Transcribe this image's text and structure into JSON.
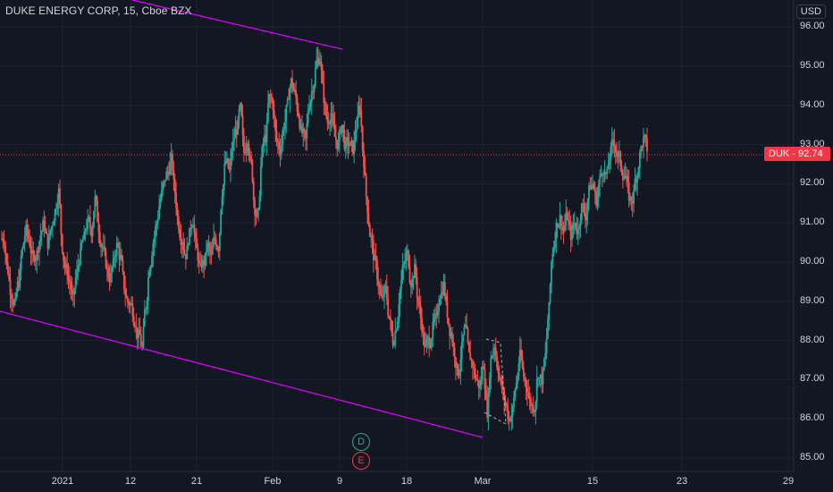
{
  "header": {
    "title": "DUKE ENERGY CORP, 15, Cboe BZX",
    "currency": "USD"
  },
  "price_tag": {
    "label": "DUK",
    "value": "92.74"
  },
  "markers": {
    "dividend": "D",
    "earnings": "E"
  },
  "colors": {
    "background": "#131722",
    "up": "#26a69a",
    "down": "#ef5350",
    "trendline": "#d500f9",
    "price_line": "#f23645"
  },
  "chart_data": {
    "type": "line",
    "title": "DUKE ENERGY CORP, 15, Cboe BZX",
    "ylim": [
      84.6,
      96.5
    ],
    "y_ticks": [
      "96.00",
      "95.00",
      "94.00",
      "93.00",
      "92.00",
      "91.00",
      "90.00",
      "89.00",
      "88.00",
      "87.00",
      "86.00",
      "85.00"
    ],
    "x_ticks": [
      "2021",
      "12",
      "21",
      "Feb",
      "9",
      "18",
      "Mar",
      "15",
      "23",
      "29"
    ],
    "last_price": 92.74,
    "series": [
      {
        "values": [
          90.6,
          89.8,
          89.2,
          88.9,
          89.5,
          90.3,
          90.8,
          90.5,
          90.1,
          90.2,
          90.7,
          91.0,
          90.5,
          90.9,
          91.3,
          91.8,
          90.4,
          89.8,
          89.5,
          89.0,
          89.7,
          90.2,
          90.6,
          91.0,
          90.8,
          91.6,
          90.9,
          90.4,
          90.0,
          89.6,
          89.9,
          90.4,
          90.1,
          89.4,
          89.0,
          88.9,
          88.5,
          88.1,
          87.8,
          88.9,
          89.9,
          90.5,
          91.0,
          91.6,
          92.0,
          92.3,
          92.6,
          91.8,
          91.0,
          90.6,
          90.2,
          90.7,
          91.1,
          90.3,
          89.8,
          90.0,
          90.4,
          90.1,
          90.6,
          90.4,
          91.8,
          92.6,
          92.3,
          93.0,
          93.4,
          93.9,
          92.8,
          93.2,
          92.5,
          91.4,
          91.2,
          92.8,
          93.2,
          94.2,
          94.0,
          93.1,
          92.9,
          93.5,
          94.0,
          94.6,
          94.3,
          93.8,
          93.3,
          93.1,
          94.1,
          94.5,
          95.1,
          95.2,
          94.2,
          93.6,
          93.8,
          93.2,
          93.0,
          93.5,
          92.9,
          93.0,
          92.9,
          93.5,
          94.0,
          92.6,
          91.4,
          90.6,
          90.0,
          89.5,
          89.0,
          89.3,
          88.6,
          88.0,
          88.4,
          89.3,
          89.9,
          90.2,
          89.5,
          89.8,
          89.0,
          88.4,
          87.8,
          88.0,
          88.3,
          88.5,
          89.2,
          89.4,
          88.7,
          88.2,
          87.7,
          87.2,
          87.8,
          88.3,
          87.6,
          87.4,
          87.0,
          86.8,
          87.4,
          86.2,
          87.5,
          87.9,
          87.3,
          86.8,
          86.4,
          86.0,
          86.2,
          86.9,
          87.6,
          87.1,
          86.8,
          86.4,
          86.3,
          87.2,
          87.0,
          87.6,
          88.8,
          90.3,
          90.9,
          91.1,
          90.8,
          91.2,
          90.7,
          91.0,
          90.8,
          91.4,
          91.2,
          91.8,
          92.0,
          91.6,
          92.1,
          92.4,
          92.2,
          92.8,
          93.1,
          92.7,
          92.4,
          92.2,
          91.7,
          91.6,
          92.2,
          92.7,
          93.1,
          92.9
        ],
        "x_range": [
          "Dec 29",
          "Mar 19"
        ]
      }
    ],
    "trendlines": [
      "upper channel line",
      "lower channel line",
      "dashed segment near Mar"
    ]
  }
}
